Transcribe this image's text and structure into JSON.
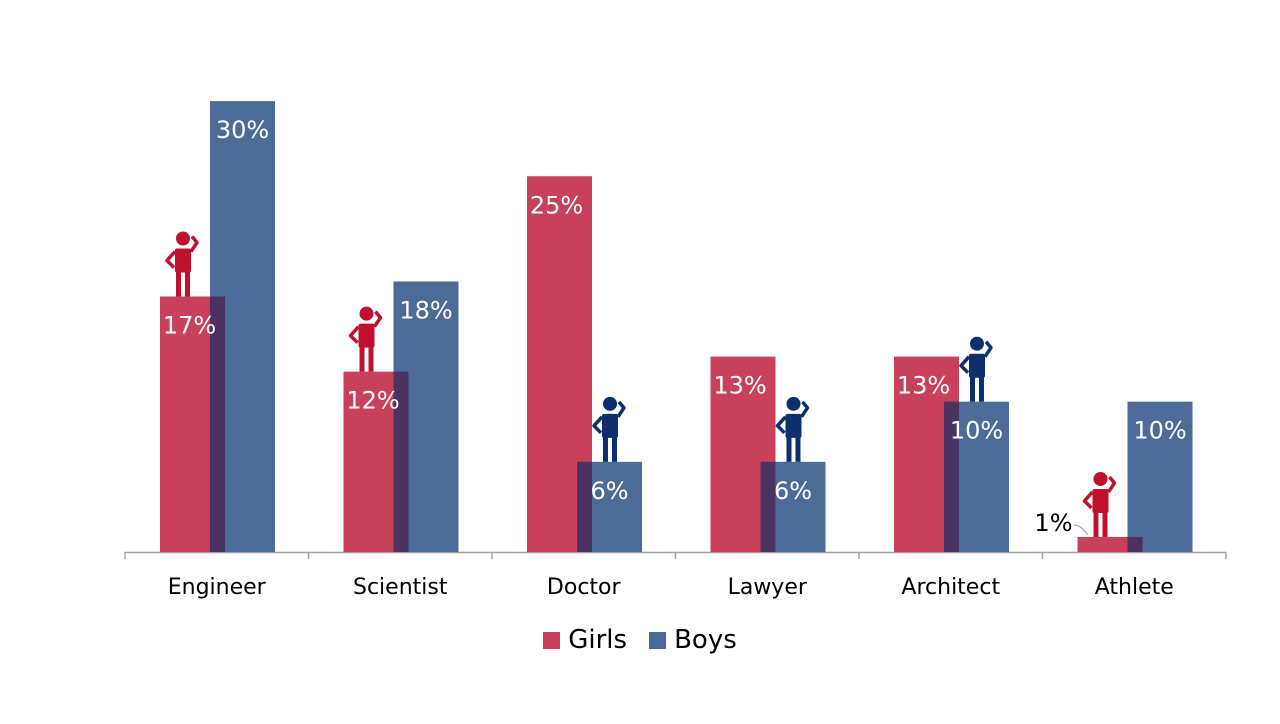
{
  "colors": {
    "girls": "#c8405a",
    "boys": "#4a6996",
    "overlap": "#4a3360",
    "girls_icon": "#c0102e",
    "boys_icon": "#0d2f6e",
    "axis": "#a6a6a6"
  },
  "legend": {
    "girls_label": "Girls",
    "boys_label": "Boys"
  },
  "chart_data": {
    "type": "bar",
    "title": "",
    "xlabel": "",
    "ylabel": "",
    "ylim": [
      0,
      30
    ],
    "grid": false,
    "legend_position": "bottom",
    "categories": [
      "Engineer",
      "Scientist",
      "Doctor",
      "Lawyer",
      "Architect",
      "Athlete"
    ],
    "series": [
      {
        "name": "Girls",
        "values": [
          17,
          12,
          25,
          13,
          13,
          1
        ],
        "labels": [
          "17%",
          "12%",
          "25%",
          "13%",
          "13%",
          "1%"
        ]
      },
      {
        "name": "Boys",
        "values": [
          30,
          18,
          6,
          6,
          10,
          10
        ],
        "labels": [
          "30%",
          "18%",
          "6%",
          "6%",
          "10%",
          "10%"
        ]
      }
    ],
    "figure_icons": [
      "girl-figure-icon",
      "girl-figure-icon",
      "boy-figure-icon",
      "boy-figure-icon",
      "boy-figure-icon",
      "girl-figure-icon"
    ]
  }
}
